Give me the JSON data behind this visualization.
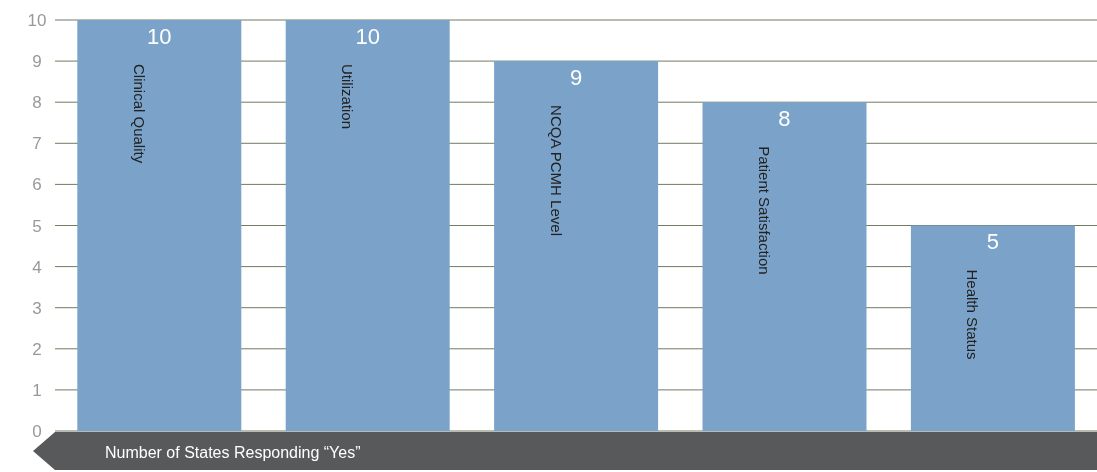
{
  "chart_data": {
    "type": "bar",
    "xlabel": "Number of States Responding “Yes”",
    "categories": [
      "Clinical Quality",
      "Utilization",
      "NCQA PCMH Level",
      "Patient Satisfaction",
      "Health Status"
    ],
    "values": [
      10,
      10,
      9,
      8,
      5
    ],
    "color": "#7ba3c9",
    "data_labels": true,
    "ylim": [
      0,
      10
    ],
    "yticks": [
      0,
      1,
      2,
      3,
      4,
      5,
      6,
      7,
      8,
      9,
      10
    ],
    "grid": "y"
  }
}
